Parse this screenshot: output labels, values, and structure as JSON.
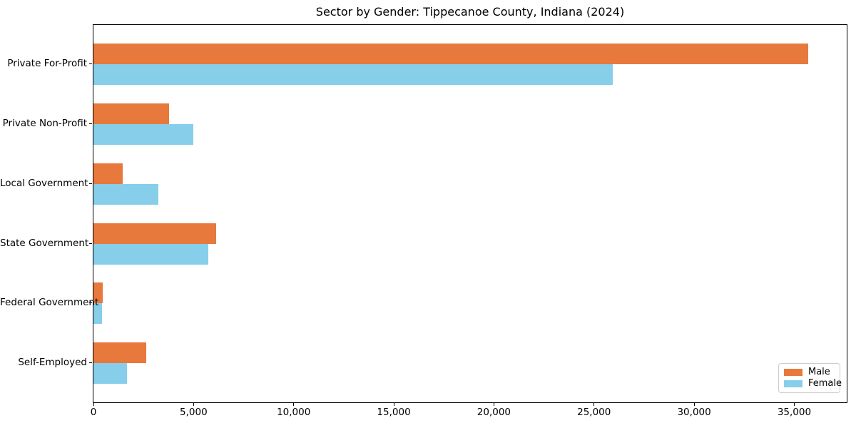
{
  "title": "Sector by Gender: Tippecanoe County, Indiana (2024)",
  "colors": {
    "male_bar": "#E8793C",
    "female_bar": "#87CEEB",
    "spine": "#000000",
    "text": "#000000",
    "legend_border": "#cccccc",
    "background": "#ffffff"
  },
  "legend": {
    "position": "lower right",
    "items": [
      {
        "label": "Male"
      },
      {
        "label": "Female"
      }
    ]
  },
  "chart_data": {
    "type": "bar",
    "orientation": "horizontal",
    "title": "Sector by Gender: Tippecanoe County, Indiana (2024)",
    "categories": [
      "Private For-Profit",
      "Private Non-Profit",
      "Local Government",
      "State Government",
      "Federal Government",
      "Self-Employed"
    ],
    "series": [
      {
        "name": "Male",
        "color": "#E8793C",
        "values": [
          35700,
          3770,
          1450,
          6110,
          475,
          2630
        ]
      },
      {
        "name": "Female",
        "color": "#87CEEB",
        "values": [
          25950,
          4980,
          3240,
          5750,
          440,
          1660
        ]
      }
    ],
    "x_ticks": [
      0,
      5000,
      10000,
      15000,
      20000,
      25000,
      30000,
      35000
    ],
    "x_tick_labels": [
      "0",
      "5,000",
      "10,000",
      "15,000",
      "20,000",
      "25,000",
      "30,000",
      "35,000"
    ],
    "xlim": [
      0,
      37620
    ],
    "xlabel": "",
    "ylabel": "",
    "grid": false,
    "legend_position": "lower right"
  }
}
